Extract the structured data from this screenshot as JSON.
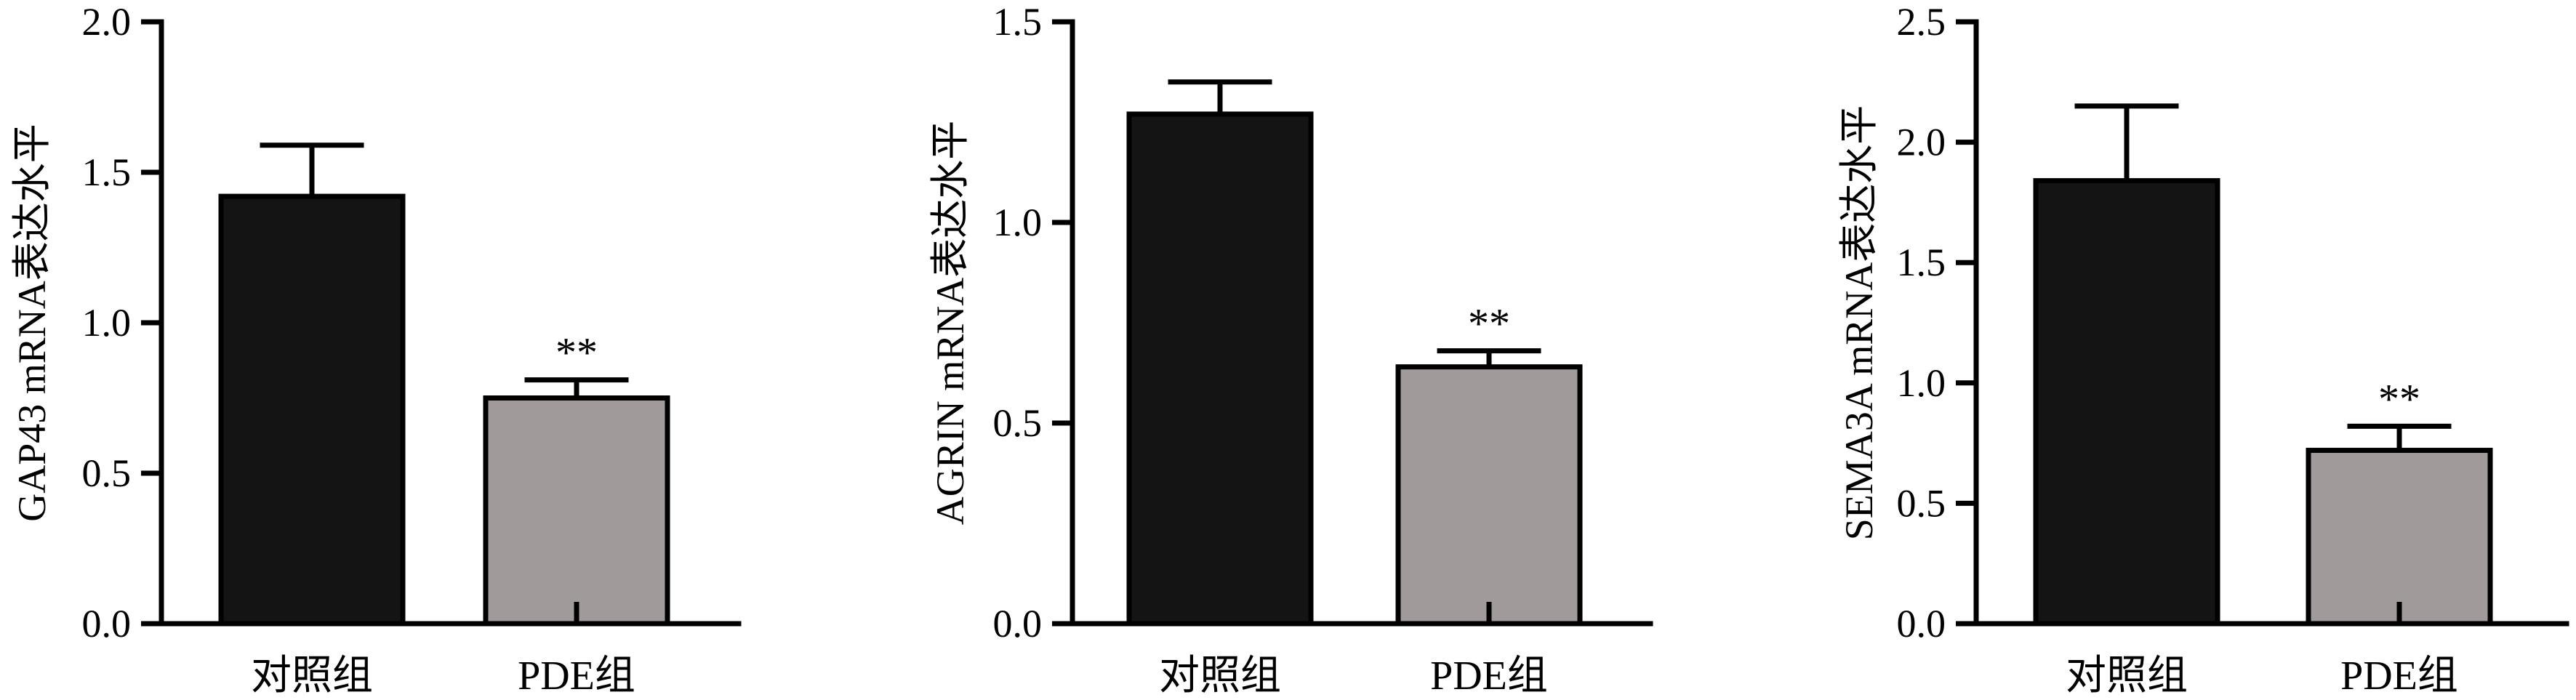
{
  "chart_data": [
    {
      "type": "bar",
      "categories": [
        "对照组",
        "PDE组"
      ],
      "values": [
        1.42,
        0.75
      ],
      "errors": [
        0.17,
        0.06
      ],
      "significance": [
        "",
        "**"
      ],
      "ylabel": "GAP43 mRNA表达水平",
      "ylim": [
        0,
        2.0
      ],
      "yticks": [
        0.0,
        0.5,
        1.0,
        1.5,
        2.0
      ],
      "ytick_labels": [
        "0.0",
        "0.5",
        "1.0",
        "1.5",
        "2.0"
      ],
      "bar_colors": [
        "#141414",
        "#a09a9a"
      ],
      "grid": false
    },
    {
      "type": "bar",
      "categories": [
        "对照组",
        "PDE组"
      ],
      "values": [
        1.27,
        0.64
      ],
      "errors": [
        0.08,
        0.04
      ],
      "significance": [
        "",
        "**"
      ],
      "ylabel": "AGRIN mRNA表达水平",
      "ylim": [
        0,
        1.5
      ],
      "yticks": [
        0.0,
        0.5,
        1.0,
        1.5
      ],
      "ytick_labels": [
        "0.0",
        "0.5",
        "1.0",
        "1.5"
      ],
      "bar_colors": [
        "#141414",
        "#a09a9a"
      ],
      "grid": false
    },
    {
      "type": "bar",
      "categories": [
        "对照组",
        "PDE组"
      ],
      "values": [
        1.84,
        0.72
      ],
      "errors": [
        0.31,
        0.1
      ],
      "significance": [
        "",
        "**"
      ],
      "ylabel": "SEMA3A mRNA表达水平",
      "ylim": [
        0,
        2.5
      ],
      "yticks": [
        0.0,
        0.5,
        1.0,
        1.5,
        2.0,
        2.5
      ],
      "ytick_labels": [
        "0.0",
        "0.5",
        "1.0",
        "1.5",
        "2.0",
        "2.5"
      ],
      "bar_colors": [
        "#141414",
        "#a09a9a"
      ],
      "grid": false
    }
  ]
}
